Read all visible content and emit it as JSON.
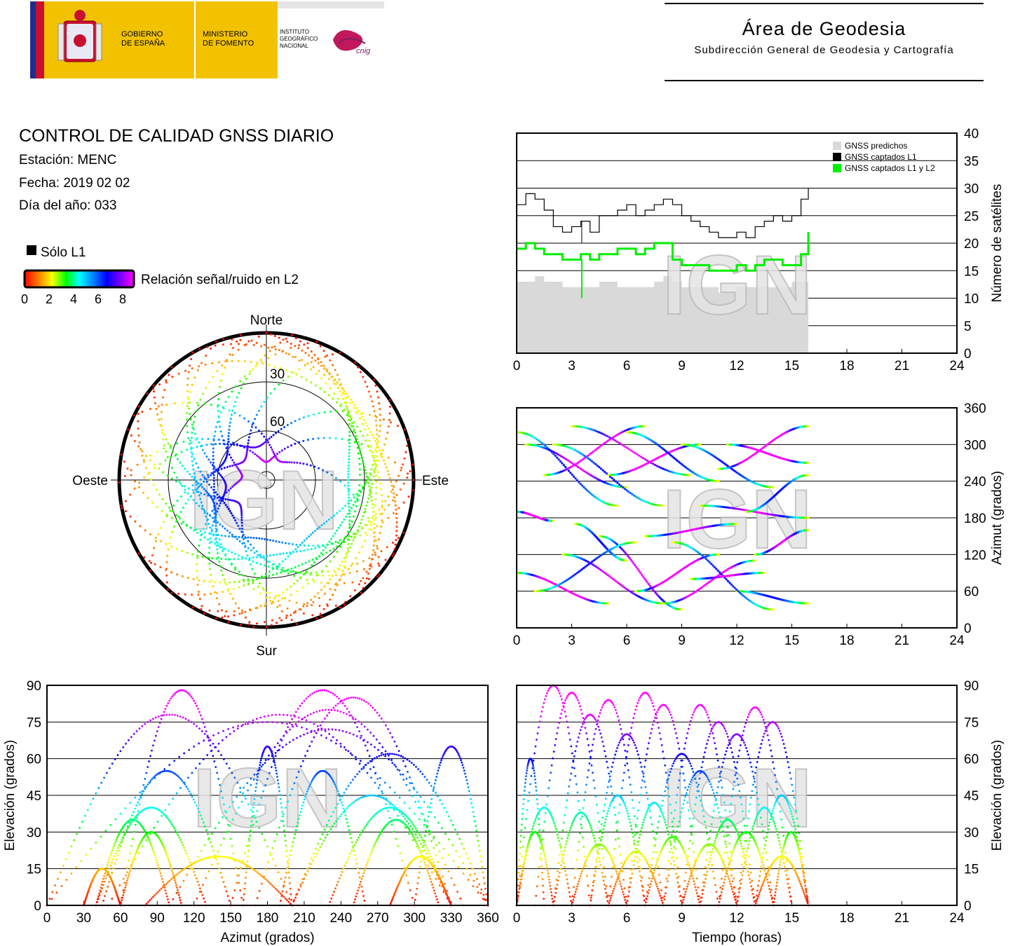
{
  "header": {
    "gobierno": "GOBIERNO\nDE ESPAÑA",
    "ministerio": "MINISTERIO\nDE FOMENTO",
    "instituto": "INSTITUTO\nGEOGRÁFICO\nNACIONAL",
    "cnig": "cnig",
    "area_title": "Área de Geodesia",
    "area_subtitle": "Subdirección General de Geodesia y Cartografía"
  },
  "report": {
    "title": "CONTROL DE CALIDAD GNSS DIARIO",
    "station": "Estación: MENC",
    "date": "Fecha: 2019 02 02",
    "doy": "Día del año: 033",
    "legend_l1": "Sólo L1",
    "colorbar_label": "Relación señal/ruido en L2",
    "colorbar_ticks": [
      "0",
      "2",
      "4",
      "6",
      "8"
    ]
  },
  "watermark": "IGN",
  "colors": {
    "colorbar": [
      "#ff0000",
      "#ff8000",
      "#ffff00",
      "#00ff00",
      "#00ffff",
      "#0080ff",
      "#0000ff",
      "#8000ff",
      "#ff00ff"
    ],
    "predicted": "#d9d9d9",
    "l1": "#000000",
    "l1l2": "#00ee00"
  },
  "chart_data": [
    {
      "id": "satellites",
      "type": "line",
      "ylabel": "Número de satélites",
      "xlim": [
        0,
        24
      ],
      "ylim": [
        0,
        40
      ],
      "xticks": [
        "0",
        "3",
        "6",
        "9",
        "12",
        "15",
        "18",
        "21",
        "24"
      ],
      "yticks": [
        "0",
        "5",
        "10",
        "15",
        "20",
        "25",
        "30",
        "35",
        "40"
      ],
      "legend": [
        "GNSS predichos",
        "GNSS captados L1",
        "GNSS captados L1 y L2"
      ],
      "legend_position": "top-right",
      "x": [
        0,
        0.5,
        1,
        1.5,
        2,
        2.5,
        3,
        3.5,
        4,
        4.5,
        5,
        5.5,
        6,
        6.5,
        7,
        7.5,
        8,
        8.5,
        9,
        9.5,
        10,
        10.5,
        11,
        11.5,
        12,
        12.5,
        13,
        13.5,
        14,
        14.5,
        15,
        15.5,
        15.9
      ],
      "series": [
        {
          "name": "GNSS predichos",
          "values": [
            13,
            13,
            14,
            13,
            13,
            12,
            12,
            12,
            12,
            13,
            13,
            12,
            12,
            12,
            12,
            13,
            14,
            13,
            12,
            12,
            12,
            12,
            11,
            11,
            12,
            12,
            12,
            12,
            12,
            12,
            13,
            13,
            13
          ]
        },
        {
          "name": "GNSS captados L1",
          "values": [
            27,
            29,
            28,
            26,
            23,
            22,
            23,
            24,
            22,
            25,
            25,
            26,
            27,
            25,
            26,
            27,
            28,
            27,
            25,
            24,
            23,
            22,
            21,
            21,
            22,
            21,
            23,
            24,
            25,
            24,
            25,
            28,
            30
          ]
        },
        {
          "name": "GNSS captados L1 y L2",
          "values": [
            19,
            20,
            19,
            18,
            18,
            17,
            17,
            18,
            17,
            18,
            18,
            19,
            19,
            18,
            19,
            20,
            20,
            17,
            16,
            16,
            16,
            15,
            15,
            15,
            16,
            15,
            16,
            17,
            17,
            16,
            16,
            18,
            22
          ]
        }
      ]
    },
    {
      "id": "azimuth",
      "type": "scatter",
      "ylabel": "Azimut (grados)",
      "xlim": [
        0,
        24
      ],
      "ylim": [
        0,
        360
      ],
      "xticks": [
        "0",
        "3",
        "6",
        "9",
        "12",
        "15",
        "18",
        "21",
        "24"
      ],
      "yticks": [
        "0",
        "60",
        "120",
        "180",
        "240",
        "300",
        "360"
      ]
    },
    {
      "id": "skyplot",
      "type": "scatter",
      "labels": {
        "north": "Norte",
        "south": "Sur",
        "east": "Este",
        "west": "Oeste"
      },
      "rings": [
        "30",
        "60"
      ]
    },
    {
      "id": "elev_az",
      "type": "scatter",
      "xlabel": "Azimut (grados)",
      "ylabel": "Elevación (grados)",
      "xlim": [
        0,
        360
      ],
      "ylim": [
        0,
        90
      ],
      "xticks": [
        "0",
        "30",
        "60",
        "90",
        "120",
        "150",
        "180",
        "210",
        "240",
        "270",
        "300",
        "330",
        "360"
      ],
      "yticks": [
        "0",
        "15",
        "30",
        "45",
        "60",
        "75",
        "90"
      ]
    },
    {
      "id": "elev_time",
      "type": "scatter",
      "xlabel": "Tiempo (horas)",
      "ylabel": "Elevación (grados)",
      "xlim": [
        0,
        24
      ],
      "ylim": [
        0,
        90
      ],
      "xticks": [
        "0",
        "3",
        "6",
        "9",
        "12",
        "15",
        "18",
        "21",
        "24"
      ],
      "yticks": [
        "0",
        "15",
        "30",
        "45",
        "60",
        "75",
        "90"
      ]
    }
  ]
}
